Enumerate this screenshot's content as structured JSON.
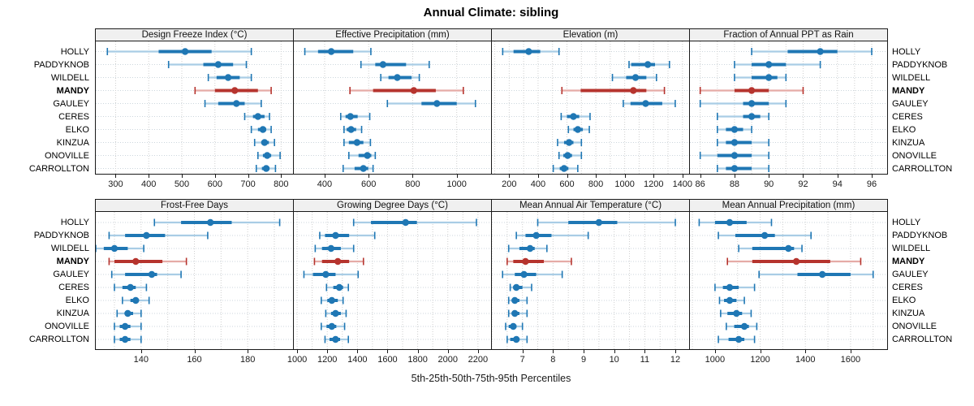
{
  "title": "Annual Climate: sibling",
  "footer": "5th-25th-50th-75th-95th Percentiles",
  "sites": [
    "HOLLY",
    "PADDYKNOB",
    "WILDELL",
    "MANDY",
    "GAULEY",
    "CERES",
    "ELKO",
    "KINZUA",
    "ONOVILLE",
    "CARROLLTON"
  ],
  "highlight_site": "MANDY",
  "percentiles": [
    5,
    25,
    50,
    75,
    95
  ],
  "colors": {
    "blue": "#1f77b4",
    "blue_light": "#a9cde5",
    "red": "#b6342e",
    "red_light": "#e5aba6",
    "grid_vertical": "#cfcfcf",
    "grid_row": "#ccd6dd",
    "panel_border": "#1a1a1a",
    "header_bg": "#f0f0f0"
  },
  "chart_data": {
    "type": "dot-whisker-trellis",
    "layout": {
      "rows": 2,
      "cols": 4
    },
    "legend": "whisker = 5th-95th, thick bar = 25th-75th, dot = 50th percentile",
    "panels": [
      {
        "title": "Design Freeze Index (°C)",
        "xlim": [
          240,
          836
        ],
        "ticks": [
          300,
          400,
          500,
          600,
          700,
          800
        ],
        "grid_step": 100,
        "values": {
          "HOLLY": [
            275,
            430,
            510,
            590,
            710
          ],
          "PADDYKNOB": [
            460,
            565,
            610,
            655,
            695
          ],
          "WILDELL": [
            580,
            605,
            640,
            675,
            710
          ],
          "MANDY": [
            540,
            600,
            660,
            730,
            770
          ],
          "GAULEY": [
            570,
            610,
            665,
            690,
            740
          ],
          "CERES": [
            690,
            715,
            730,
            750,
            765
          ],
          "ELKO": [
            710,
            730,
            745,
            755,
            770
          ],
          "KINZUA": [
            720,
            740,
            750,
            763,
            780
          ],
          "ONOVILLE": [
            730,
            745,
            758,
            770,
            797
          ],
          "CARROLLTON": [
            725,
            742,
            755,
            765,
            783
          ]
        }
      },
      {
        "title": "Effective Precipitation (mm)",
        "xlim": [
          260,
          1156
        ],
        "ticks": [
          400,
          600,
          800,
          1000
        ],
        "grid_step": 200,
        "values": {
          "HOLLY": [
            310,
            370,
            430,
            530,
            610
          ],
          "PADDYKNOB": [
            565,
            630,
            665,
            770,
            875
          ],
          "WILDELL": [
            655,
            690,
            730,
            795,
            830
          ],
          "MANDY": [
            515,
            620,
            805,
            905,
            1030
          ],
          "GAULEY": [
            685,
            840,
            910,
            1000,
            1085
          ],
          "CERES": [
            473,
            495,
            517,
            550,
            605
          ],
          "ELKO": [
            488,
            500,
            520,
            543,
            568
          ],
          "KINZUA": [
            488,
            510,
            547,
            576,
            608
          ],
          "ONOVILLE": [
            510,
            554,
            594,
            612,
            630
          ],
          "CARROLLTON": [
            484,
            536,
            576,
            598,
            620
          ]
        }
      },
      {
        "title": "Elevation (m)",
        "xlim": [
          80,
          1446
        ],
        "ticks": [
          200,
          400,
          600,
          800,
          1000,
          1200,
          1400
        ],
        "grid_step": 100,
        "values": {
          "HOLLY": [
            155,
            230,
            335,
            415,
            545
          ],
          "PADDYKNOB": [
            1030,
            1045,
            1160,
            1210,
            1310
          ],
          "WILDELL": [
            915,
            1010,
            1075,
            1150,
            1220
          ],
          "MANDY": [
            565,
            695,
            1060,
            1150,
            1275
          ],
          "GAULEY": [
            990,
            1040,
            1145,
            1260,
            1350
          ],
          "CERES": [
            560,
            600,
            645,
            685,
            760
          ],
          "ELKO": [
            610,
            645,
            675,
            710,
            755
          ],
          "KINZUA": [
            535,
            580,
            615,
            645,
            700
          ],
          "ONOVILLE": [
            545,
            575,
            605,
            635,
            700
          ],
          "CARROLLTON": [
            505,
            550,
            580,
            610,
            675
          ]
        }
      },
      {
        "title": "Fraction of Annual PPT as Rain",
        "xlim": [
          85.4,
          96.9
        ],
        "ticks": [
          86,
          88,
          90,
          92,
          94,
          96
        ],
        "grid_step": 1,
        "values": {
          "HOLLY": [
            89,
            91.1,
            93,
            94,
            96
          ],
          "PADDYKNOB": [
            88,
            89,
            90,
            91,
            93
          ],
          "WILDELL": [
            88,
            89,
            90,
            90.5,
            91
          ],
          "MANDY": [
            86,
            88,
            89,
            90,
            92
          ],
          "GAULEY": [
            86,
            88.5,
            89,
            90,
            91
          ],
          "CERES": [
            87,
            88.5,
            89,
            89.5,
            90
          ],
          "ELKO": [
            87,
            87.5,
            88,
            88.5,
            89
          ],
          "KINZUA": [
            87,
            87.5,
            88,
            89,
            90
          ],
          "ONOVILLE": [
            86,
            87,
            88,
            89,
            90
          ],
          "CARROLLTON": [
            87,
            87.5,
            88,
            89,
            90
          ]
        }
      },
      {
        "title": "Frost-Free Days",
        "xlim": [
          123,
          197
        ],
        "ticks": [
          140,
          160,
          180
        ],
        "grid_step": 10,
        "values": {
          "HOLLY": [
            145,
            155,
            166,
            174,
            192
          ],
          "PADDYKNOB": [
            128,
            134,
            142,
            149,
            165
          ],
          "WILDELL": [
            123,
            126,
            130,
            135,
            141
          ],
          "MANDY": [
            128,
            130,
            138,
            148,
            157
          ],
          "GAULEY": [
            129,
            134,
            144,
            146,
            155
          ],
          "CERES": [
            130,
            133,
            136,
            138,
            142
          ],
          "ELKO": [
            133,
            136,
            138,
            139,
            143
          ],
          "KINZUA": [
            131,
            134,
            135,
            137,
            140
          ],
          "ONOVILLE": [
            130,
            132,
            134,
            136,
            140
          ],
          "CARROLLTON": [
            130,
            132,
            134,
            136,
            140
          ]
        }
      },
      {
        "title": "Growing Degree Days (°C)",
        "xlim": [
          978,
          2287
        ],
        "ticks": [
          1000,
          1200,
          1400,
          1600,
          1800,
          2000,
          2200
        ],
        "grid_step": 100,
        "values": {
          "HOLLY": [
            1375,
            1490,
            1720,
            1795,
            2190
          ],
          "PADDYKNOB": [
            1150,
            1185,
            1255,
            1345,
            1515
          ],
          "WILDELL": [
            1120,
            1165,
            1225,
            1290,
            1375
          ],
          "MANDY": [
            1115,
            1165,
            1270,
            1345,
            1440
          ],
          "GAULEY": [
            1045,
            1105,
            1190,
            1255,
            1405
          ],
          "CERES": [
            1195,
            1240,
            1280,
            1305,
            1340
          ],
          "ELKO": [
            1160,
            1200,
            1230,
            1270,
            1305
          ],
          "KINZUA": [
            1190,
            1225,
            1255,
            1290,
            1325
          ],
          "ONOVILLE": [
            1160,
            1195,
            1230,
            1260,
            1315
          ],
          "CARROLLTON": [
            1185,
            1215,
            1255,
            1285,
            1340
          ]
        }
      },
      {
        "title": "Mean Annual Air Temperature (°C)",
        "xlim": [
          6.0,
          12.45
        ],
        "ticks": [
          7,
          8,
          9,
          10,
          11,
          12
        ],
        "grid_step": 0.5,
        "values": {
          "HOLLY": [
            7.5,
            8.5,
            9.5,
            10.1,
            12.0
          ],
          "PADDYKNOB": [
            6.8,
            7.1,
            7.45,
            7.95,
            9.15
          ],
          "WILDELL": [
            6.55,
            6.9,
            7.25,
            7.4,
            7.8
          ],
          "MANDY": [
            6.5,
            6.7,
            7.1,
            7.7,
            8.6
          ],
          "GAULEY": [
            6.35,
            6.75,
            7.05,
            7.45,
            8.3
          ],
          "CERES": [
            6.6,
            6.7,
            6.8,
            7.0,
            7.3
          ],
          "ELKO": [
            6.55,
            6.65,
            6.75,
            6.9,
            7.15
          ],
          "KINZUA": [
            6.55,
            6.65,
            6.75,
            6.9,
            7.15
          ],
          "ONOVILLE": [
            6.45,
            6.55,
            6.7,
            6.8,
            7.0
          ],
          "CARROLLTON": [
            6.5,
            6.6,
            6.8,
            6.9,
            7.15
          ]
        }
      },
      {
        "title": "Mean Annual Precipitation (mm)",
        "xlim": [
          889,
          1762
        ],
        "ticks": [
          1000,
          1200,
          1400,
          1600
        ],
        "grid_step": 100,
        "values": {
          "HOLLY": [
            930,
            1000,
            1065,
            1140,
            1250
          ],
          "PADDYKNOB": [
            1015,
            1090,
            1220,
            1265,
            1425
          ],
          "WILDELL": [
            1105,
            1165,
            1325,
            1350,
            1385
          ],
          "MANDY": [
            1055,
            1165,
            1360,
            1510,
            1645
          ],
          "GAULEY": [
            1195,
            1365,
            1475,
            1600,
            1700
          ],
          "CERES": [
            1000,
            1035,
            1065,
            1105,
            1175
          ],
          "ELKO": [
            1020,
            1040,
            1065,
            1095,
            1130
          ],
          "KINZUA": [
            1025,
            1055,
            1095,
            1120,
            1160
          ],
          "ONOVILLE": [
            1050,
            1085,
            1130,
            1150,
            1185
          ],
          "CARROLLTON": [
            1015,
            1060,
            1105,
            1130,
            1175
          ]
        }
      }
    ]
  }
}
